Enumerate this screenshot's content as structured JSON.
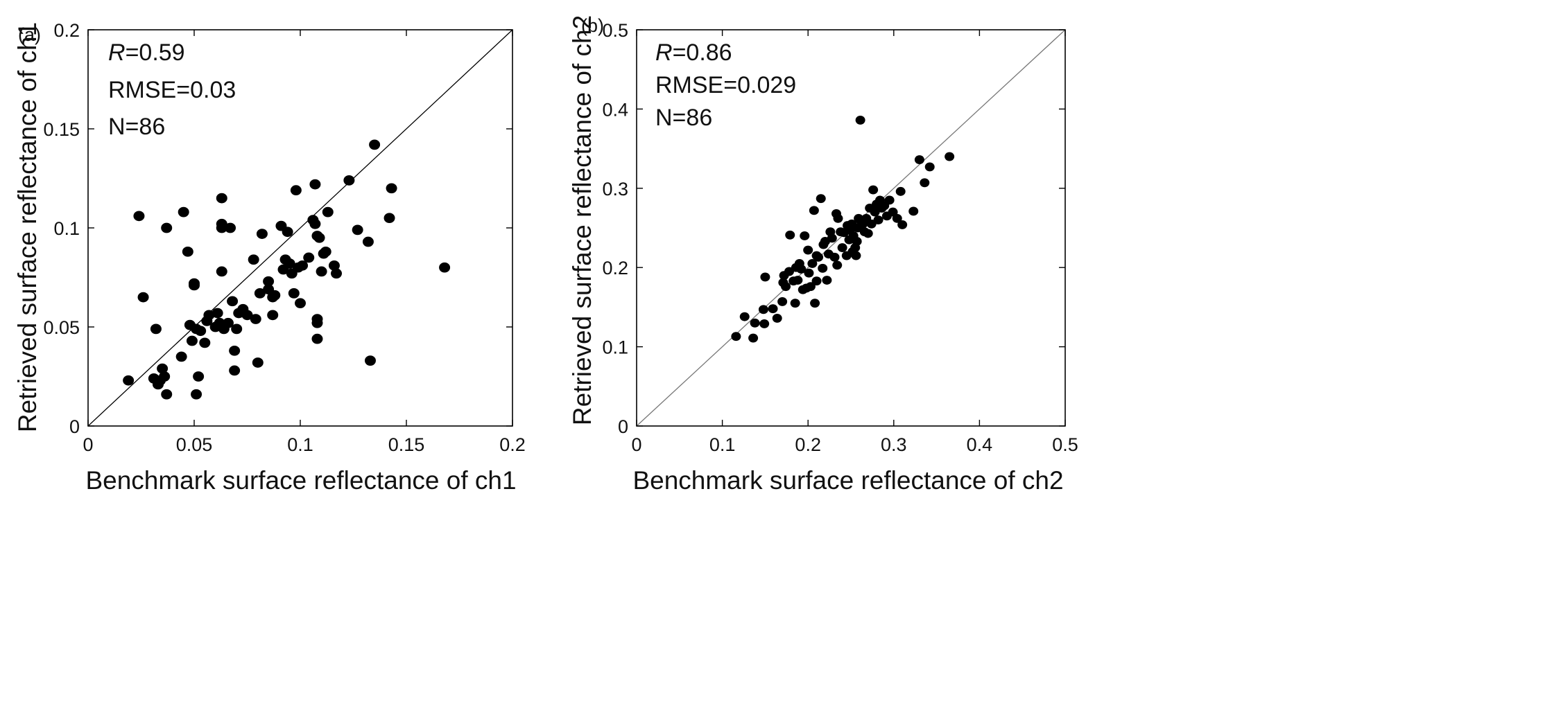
{
  "chart_data": [
    {
      "type": "scatter",
      "panel_label": "(a)",
      "xlabel": "Benchmark surface reflectance of ch1",
      "ylabel": "Retrieved surface reflectance of ch1",
      "xlim": [
        0,
        0.2
      ],
      "ylim": [
        0,
        0.2
      ],
      "xticks": [
        "0",
        "0.05",
        "0.1",
        "0.15",
        "0.2"
      ],
      "yticks": [
        "0",
        "0.05",
        "0.1",
        "0.15",
        "0.2"
      ],
      "xtick_values": [
        0,
        0.05,
        0.1,
        0.15,
        0.2
      ],
      "ytick_values": [
        0,
        0.05,
        0.1,
        0.15,
        0.2
      ],
      "reference_line": "1:1",
      "annotations": {
        "r_symbol": "R",
        "r_value": "=0.59",
        "rmse": "RMSE=0.03",
        "n": "N=86"
      },
      "points": [
        [
          0.019,
          0.023
        ],
        [
          0.026,
          0.065
        ],
        [
          0.031,
          0.024
        ],
        [
          0.032,
          0.049
        ],
        [
          0.033,
          0.021
        ],
        [
          0.034,
          0.023
        ],
        [
          0.035,
          0.029
        ],
        [
          0.036,
          0.025
        ],
        [
          0.037,
          0.016
        ],
        [
          0.037,
          0.1
        ],
        [
          0.044,
          0.035
        ],
        [
          0.045,
          0.108
        ],
        [
          0.047,
          0.088
        ],
        [
          0.048,
          0.051
        ],
        [
          0.049,
          0.043
        ],
        [
          0.05,
          0.071
        ],
        [
          0.05,
          0.072
        ],
        [
          0.051,
          0.049
        ],
        [
          0.051,
          0.016
        ],
        [
          0.052,
          0.025
        ],
        [
          0.053,
          0.048
        ],
        [
          0.055,
          0.042
        ],
        [
          0.056,
          0.053
        ],
        [
          0.057,
          0.056
        ],
        [
          0.06,
          0.05
        ],
        [
          0.062,
          0.052
        ],
        [
          0.063,
          0.115
        ],
        [
          0.063,
          0.102
        ],
        [
          0.063,
          0.1
        ],
        [
          0.063,
          0.078
        ],
        [
          0.064,
          0.049
        ],
        [
          0.066,
          0.052
        ],
        [
          0.067,
          0.1
        ],
        [
          0.068,
          0.063
        ],
        [
          0.069,
          0.038
        ],
        [
          0.069,
          0.028
        ],
        [
          0.07,
          0.049
        ],
        [
          0.071,
          0.057
        ],
        [
          0.073,
          0.059
        ],
        [
          0.075,
          0.056
        ],
        [
          0.078,
          0.084
        ],
        [
          0.079,
          0.054
        ],
        [
          0.08,
          0.032
        ],
        [
          0.081,
          0.067
        ],
        [
          0.082,
          0.097
        ],
        [
          0.085,
          0.073
        ],
        [
          0.085,
          0.069
        ],
        [
          0.087,
          0.065
        ],
        [
          0.087,
          0.056
        ],
        [
          0.088,
          0.066
        ],
        [
          0.091,
          0.101
        ],
        [
          0.092,
          0.079
        ],
        [
          0.093,
          0.084
        ],
        [
          0.094,
          0.098
        ],
        [
          0.095,
          0.082
        ],
        [
          0.096,
          0.077
        ],
        [
          0.097,
          0.067
        ],
        [
          0.098,
          0.119
        ],
        [
          0.099,
          0.08
        ],
        [
          0.1,
          0.062
        ],
        [
          0.101,
          0.081
        ],
        [
          0.104,
          0.085
        ],
        [
          0.106,
          0.104
        ],
        [
          0.107,
          0.122
        ],
        [
          0.107,
          0.102
        ],
        [
          0.108,
          0.096
        ],
        [
          0.108,
          0.054
        ],
        [
          0.108,
          0.052
        ],
        [
          0.108,
          0.044
        ],
        [
          0.109,
          0.095
        ],
        [
          0.11,
          0.078
        ],
        [
          0.111,
          0.087
        ],
        [
          0.112,
          0.088
        ],
        [
          0.113,
          0.108
        ],
        [
          0.116,
          0.081
        ],
        [
          0.117,
          0.077
        ],
        [
          0.123,
          0.124
        ],
        [
          0.127,
          0.099
        ],
        [
          0.132,
          0.093
        ],
        [
          0.133,
          0.033
        ],
        [
          0.135,
          0.142
        ],
        [
          0.142,
          0.105
        ],
        [
          0.143,
          0.12
        ],
        [
          0.168,
          0.08
        ],
        [
          0.024,
          0.106
        ],
        [
          0.061,
          0.057
        ]
      ]
    },
    {
      "type": "scatter",
      "panel_label": "(b)",
      "xlabel": "Benchmark surface reflectance of ch2",
      "ylabel": "Retrieved surface reflectance of ch2",
      "xlim": [
        0,
        0.5
      ],
      "ylim": [
        0,
        0.5
      ],
      "xticks": [
        "0",
        "0.1",
        "0.2",
        "0.3",
        "0.4",
        "0.5"
      ],
      "yticks": [
        "0",
        "0.1",
        "0.2",
        "0.3",
        "0.4",
        "0.5"
      ],
      "xtick_values": [
        0,
        0.1,
        0.2,
        0.3,
        0.4,
        0.5
      ],
      "ytick_values": [
        0,
        0.1,
        0.2,
        0.3,
        0.4,
        0.5
      ],
      "reference_line": "1:1",
      "annotations": {
        "r_symbol": "R",
        "r_value": "=0.86",
        "rmse": "RMSE=0.029",
        "n": "N=86"
      },
      "points": [
        [
          0.116,
          0.113
        ],
        [
          0.126,
          0.138
        ],
        [
          0.136,
          0.111
        ],
        [
          0.138,
          0.13
        ],
        [
          0.148,
          0.147
        ],
        [
          0.149,
          0.129
        ],
        [
          0.15,
          0.188
        ],
        [
          0.159,
          0.148
        ],
        [
          0.164,
          0.136
        ],
        [
          0.17,
          0.157
        ],
        [
          0.171,
          0.181
        ],
        [
          0.172,
          0.19
        ],
        [
          0.174,
          0.176
        ],
        [
          0.178,
          0.195
        ],
        [
          0.179,
          0.241
        ],
        [
          0.183,
          0.183
        ],
        [
          0.185,
          0.155
        ],
        [
          0.186,
          0.2
        ],
        [
          0.188,
          0.184
        ],
        [
          0.19,
          0.205
        ],
        [
          0.192,
          0.198
        ],
        [
          0.194,
          0.172
        ],
        [
          0.196,
          0.24
        ],
        [
          0.198,
          0.174
        ],
        [
          0.2,
          0.222
        ],
        [
          0.201,
          0.193
        ],
        [
          0.203,
          0.176
        ],
        [
          0.205,
          0.205
        ],
        [
          0.207,
          0.272
        ],
        [
          0.208,
          0.155
        ],
        [
          0.21,
          0.183
        ],
        [
          0.212,
          0.213
        ],
        [
          0.215,
          0.287
        ],
        [
          0.217,
          0.199
        ],
        [
          0.218,
          0.229
        ],
        [
          0.22,
          0.233
        ],
        [
          0.222,
          0.184
        ],
        [
          0.224,
          0.217
        ],
        [
          0.226,
          0.245
        ],
        [
          0.228,
          0.237
        ],
        [
          0.231,
          0.213
        ],
        [
          0.233,
          0.268
        ],
        [
          0.234,
          0.203
        ],
        [
          0.235,
          0.262
        ],
        [
          0.238,
          0.245
        ],
        [
          0.24,
          0.225
        ],
        [
          0.242,
          0.244
        ],
        [
          0.245,
          0.215
        ],
        [
          0.246,
          0.253
        ],
        [
          0.248,
          0.235
        ],
        [
          0.249,
          0.247
        ],
        [
          0.251,
          0.255
        ],
        [
          0.252,
          0.22
        ],
        [
          0.253,
          0.24
        ],
        [
          0.255,
          0.225
        ],
        [
          0.256,
          0.215
        ],
        [
          0.257,
          0.233
        ],
        [
          0.258,
          0.25
        ],
        [
          0.259,
          0.262
        ],
        [
          0.261,
          0.386
        ],
        [
          0.262,
          0.258
        ],
        [
          0.264,
          0.255
        ],
        [
          0.266,
          0.245
        ],
        [
          0.268,
          0.262
        ],
        [
          0.27,
          0.243
        ],
        [
          0.272,
          0.275
        ],
        [
          0.274,
          0.255
        ],
        [
          0.276,
          0.298
        ],
        [
          0.278,
          0.27
        ],
        [
          0.28,
          0.28
        ],
        [
          0.282,
          0.26
        ],
        [
          0.284,
          0.285
        ],
        [
          0.286,
          0.275
        ],
        [
          0.289,
          0.278
        ],
        [
          0.292,
          0.265
        ],
        [
          0.295,
          0.285
        ],
        [
          0.299,
          0.27
        ],
        [
          0.304,
          0.262
        ],
        [
          0.308,
          0.296
        ],
        [
          0.31,
          0.254
        ],
        [
          0.323,
          0.271
        ],
        [
          0.33,
          0.336
        ],
        [
          0.336,
          0.307
        ],
        [
          0.342,
          0.327
        ],
        [
          0.365,
          0.34
        ],
        [
          0.21,
          0.215
        ]
      ]
    }
  ]
}
